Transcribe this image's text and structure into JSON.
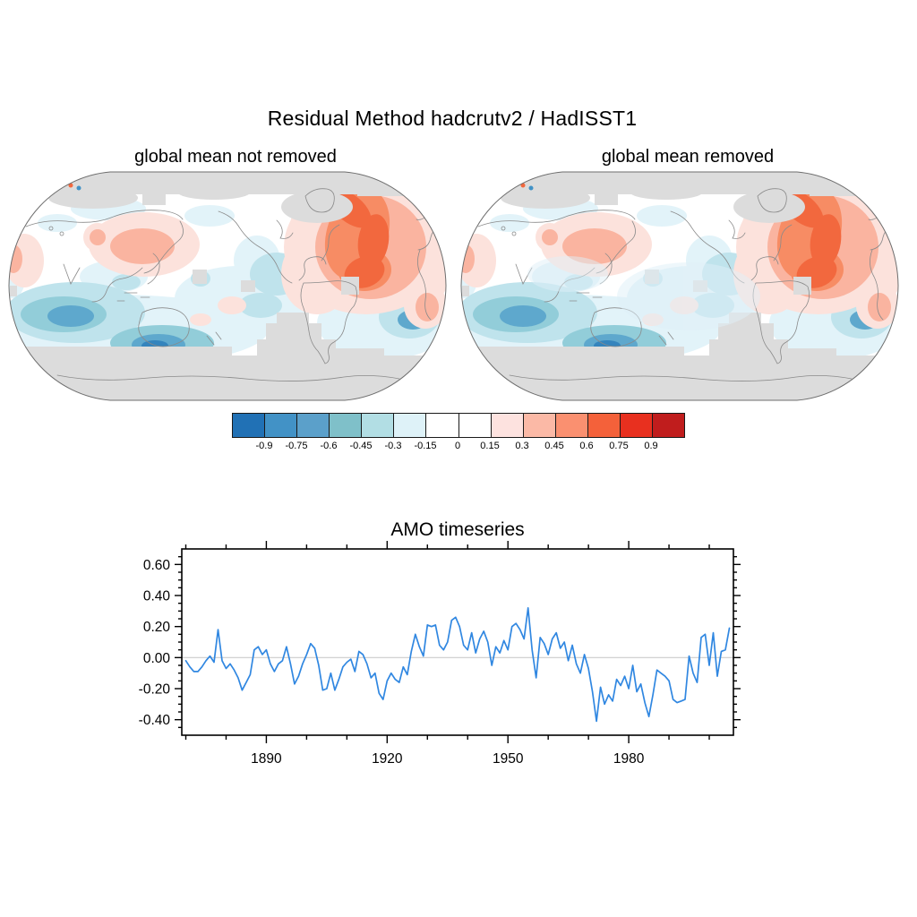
{
  "page": {
    "background": "#ffffff"
  },
  "header": {
    "title": "Residual Method  hadcrutv2  / HadISST1"
  },
  "maps": {
    "left": {
      "subtitle": "global mean not removed"
    },
    "right": {
      "subtitle": "global mean removed"
    },
    "projection": "robinson",
    "missing_data_color": "#dcdcdc",
    "coastline_color": "#8a8a8a"
  },
  "colorbar": {
    "tick_labels": [
      "-0.9",
      "-0.75",
      "-0.6",
      "-0.45",
      "-0.3",
      "-0.15",
      "0",
      "0.15",
      "0.3",
      "0.45",
      "0.6",
      "0.75",
      "0.9"
    ],
    "colors": [
      "#2171b5",
      "#4292c6",
      "#5ba0ca",
      "#7fc0c9",
      "#b2dee4",
      "#def2f8",
      "#ffffff",
      "#ffffff",
      "#fde2df",
      "#fbb9a6",
      "#fa9070",
      "#f4613a",
      "#e8301f",
      "#c01d1d"
    ]
  },
  "chart_data": {
    "type": "line",
    "title": "AMO timeseries",
    "x_start_year": 1870,
    "x_step": 1,
    "values": [
      -0.02,
      -0.06,
      -0.09,
      -0.09,
      -0.06,
      -0.02,
      0.01,
      -0.03,
      0.18,
      -0.02,
      -0.07,
      -0.04,
      -0.08,
      -0.13,
      -0.21,
      -0.16,
      -0.11,
      0.05,
      0.07,
      0.02,
      0.05,
      -0.04,
      -0.09,
      -0.04,
      -0.02,
      0.07,
      -0.04,
      -0.17,
      -0.12,
      -0.04,
      0.02,
      0.09,
      0.06,
      -0.05,
      -0.21,
      -0.2,
      -0.1,
      -0.21,
      -0.14,
      -0.06,
      -0.03,
      -0.01,
      -0.09,
      0.04,
      0.02,
      -0.04,
      -0.13,
      -0.1,
      -0.23,
      -0.27,
      -0.15,
      -0.1,
      -0.14,
      -0.16,
      -0.06,
      -0.11,
      0.04,
      0.15,
      0.07,
      0.01,
      0.21,
      0.2,
      0.21,
      0.08,
      0.05,
      0.1,
      0.24,
      0.26,
      0.2,
      0.08,
      0.05,
      0.16,
      0.03,
      0.12,
      0.17,
      0.1,
      -0.05,
      0.07,
      0.03,
      0.11,
      0.05,
      0.2,
      0.22,
      0.18,
      0.12,
      0.32,
      0.05,
      -0.13,
      0.13,
      0.09,
      0.02,
      0.12,
      0.16,
      0.06,
      0.1,
      -0.02,
      0.08,
      -0.04,
      -0.1,
      0.02,
      -0.07,
      -0.22,
      -0.41,
      -0.19,
      -0.3,
      -0.24,
      -0.28,
      -0.14,
      -0.18,
      -0.12,
      -0.2,
      -0.05,
      -0.22,
      -0.17,
      -0.29,
      -0.38,
      -0.24,
      -0.08,
      -0.1,
      -0.12,
      -0.15,
      -0.27,
      -0.29,
      -0.28,
      -0.27,
      0.01,
      -0.1,
      -0.16,
      0.13,
      0.15,
      -0.05,
      0.16,
      -0.12,
      0.04,
      0.05,
      0.19
    ],
    "xticks": [
      1890,
      1920,
      1950,
      1980
    ],
    "xtick_labels": [
      "1890",
      "1920",
      "1950",
      "1980"
    ],
    "yticks": [
      0.6,
      0.4,
      0.2,
      0.0,
      -0.2,
      -0.4
    ],
    "ytick_labels": [
      "0.60",
      "0.40",
      "0.20",
      "0.00",
      "-0.20",
      "-0.40"
    ],
    "xlim": [
      1869,
      2006
    ],
    "ylim": [
      -0.5,
      0.7
    ],
    "x_minor_step": 10,
    "y_minor_step": 0.05,
    "grid": false,
    "line_color": "#3087e1",
    "zero_line_color": "#cccccc",
    "axis_color": "#000000"
  }
}
